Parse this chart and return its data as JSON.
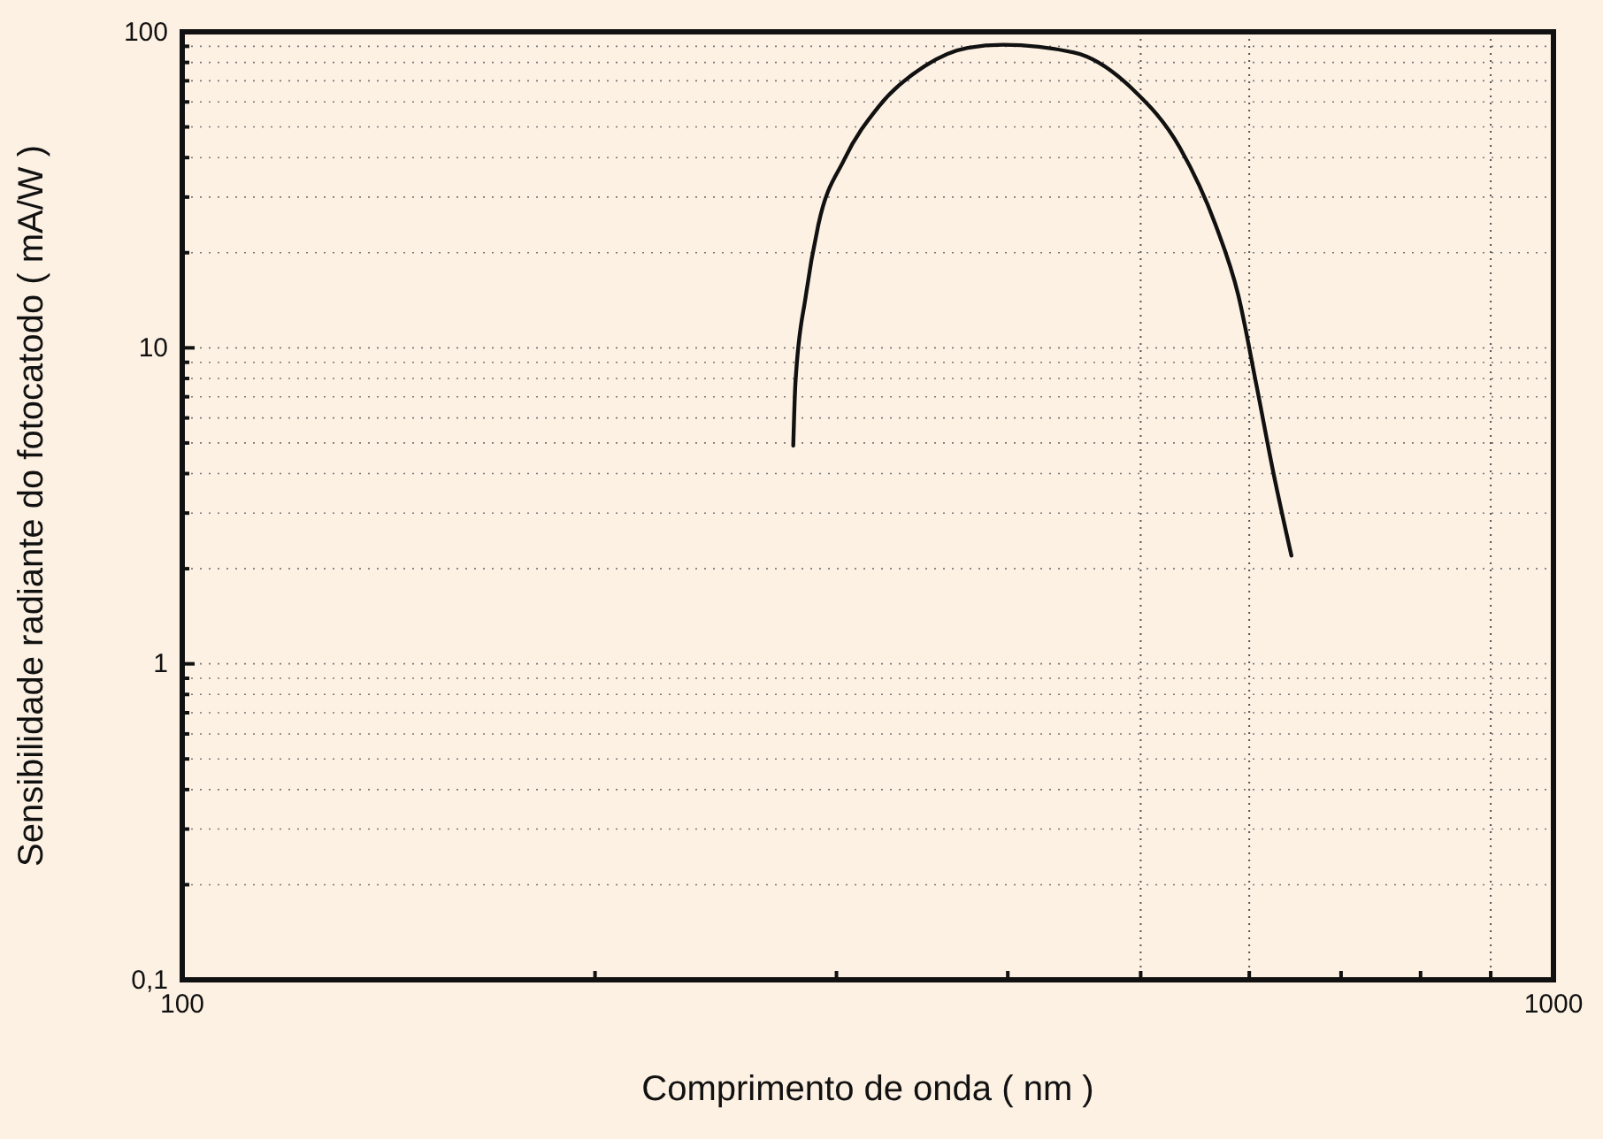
{
  "chart_data": {
    "type": "line",
    "xlabel": "Comprimento de onda ( nm )",
    "ylabel": "Sensibilidade radiante do fotocatodo ( mA/W )",
    "log": "xy",
    "grid": "y",
    "marker": "none",
    "line_style": "solid",
    "xlim": [
      100,
      1000
    ],
    "ylim": [
      0.1,
      100
    ],
    "xticks": [
      100,
      {
        "value": 200,
        "label": null
      },
      {
        "value": 300,
        "label": null
      },
      {
        "value": 400,
        "label": null
      },
      {
        "value": 500,
        "label": null
      },
      {
        "value": 600,
        "label": null
      },
      {
        "value": 700,
        "label": null
      },
      {
        "value": 800,
        "label": null
      },
      {
        "value": 900,
        "label": null
      },
      1000
    ],
    "yticks": [
      {
        "value": 0.1,
        "label": "0,1"
      },
      {
        "value": 0.2,
        "label": null
      },
      {
        "value": 0.3,
        "label": null
      },
      {
        "value": 0.4,
        "label": null
      },
      {
        "value": 0.5,
        "label": null
      },
      {
        "value": 0.6,
        "label": null
      },
      {
        "value": 0.7,
        "label": null
      },
      {
        "value": 0.8,
        "label": null
      },
      {
        "value": 0.9,
        "label": null
      },
      1,
      {
        "value": 2,
        "label": null
      },
      {
        "value": 3,
        "label": null
      },
      {
        "value": 4,
        "label": null
      },
      {
        "value": 5,
        "label": null
      },
      {
        "value": 6,
        "label": null
      },
      {
        "value": 7,
        "label": null
      },
      {
        "value": 8,
        "label": null
      },
      {
        "value": 9,
        "label": null
      },
      10,
      {
        "value": 20,
        "label": null
      },
      {
        "value": 30,
        "label": null
      },
      {
        "value": 40,
        "label": null
      },
      {
        "value": 50,
        "label": null
      },
      {
        "value": 60,
        "label": null
      },
      {
        "value": 70,
        "label": null
      },
      {
        "value": 80,
        "label": null
      },
      {
        "value": 90,
        "label": null
      },
      100
    ],
    "ref_lines": [
      {
        "axis": "x",
        "value": 500,
        "line_style": "dotted",
        "color": "#555555"
      },
      {
        "axis": "x",
        "value": 600,
        "line_style": "dotted",
        "color": "#555555"
      },
      {
        "axis": "x",
        "value": 900,
        "line_style": "dotted",
        "color": "#555555"
      }
    ],
    "series": [
      {
        "color": "#111111",
        "x": [
          279,
          280,
          285,
          291,
          304,
          322,
          348,
          374,
          397,
          447,
          493,
          534,
          567,
          589,
          607,
          625,
          644
        ],
        "values": [
          4.9,
          7.7,
          14.7,
          24.5,
          39.5,
          58,
          78,
          89,
          91,
          86,
          66,
          43,
          24.5,
          14.7,
          7.7,
          4.0,
          2.2
        ]
      }
    ]
  }
}
